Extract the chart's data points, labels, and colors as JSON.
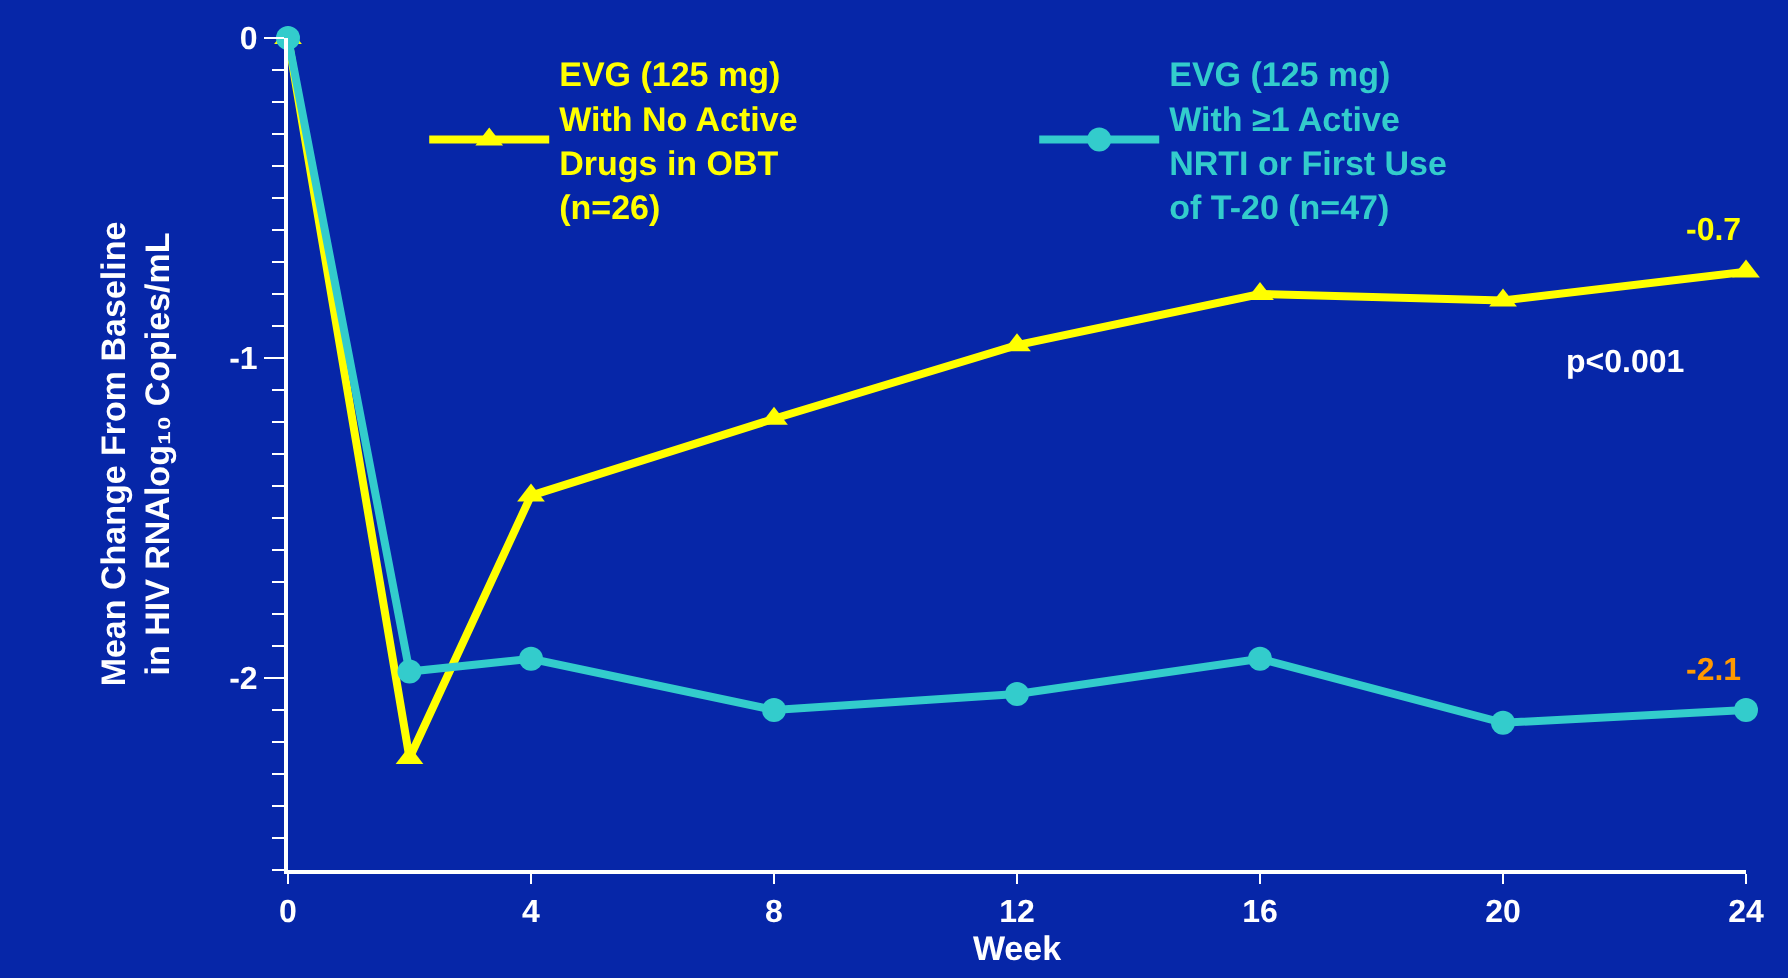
{
  "chart_data": {
    "type": "line",
    "xlabel": "Week",
    "ylabel": "Mean Change From Baseline\nin HIV RNAlog₁₀ Copies/mL",
    "x": [
      0,
      2,
      4,
      8,
      12,
      16,
      20,
      24
    ],
    "series": [
      {
        "name": "EVG (125 mg)\nWith No Active\nDrugs in OBT\n(n=26)",
        "color": "#ffff00",
        "marker": "triangle",
        "values": [
          0,
          -2.25,
          -1.43,
          -1.19,
          -0.96,
          -0.8,
          -0.82,
          -0.73
        ]
      },
      {
        "name": "EVG (125 mg)\nWith ≥1 Active\nNRTI or First Use\nof T-20 (n=47)",
        "color": "#33cccc",
        "marker": "circle",
        "values": [
          0,
          -1.98,
          -1.94,
          -2.1,
          -2.05,
          -1.94,
          -2.14,
          -2.1
        ]
      }
    ],
    "annotations": [
      {
        "text": "-0.7",
        "x": 24,
        "y": -0.73
      },
      {
        "text": "-2.1",
        "x": 24,
        "y": -2.1
      },
      "p<0.001"
    ],
    "xlim": [
      0,
      24
    ],
    "xticks": [
      0,
      4,
      8,
      12,
      16,
      20,
      24
    ],
    "ylim": [
      -2.6,
      0
    ],
    "yticks": [
      0,
      -1,
      -2
    ],
    "grid": false,
    "legend": "top",
    "line_style": "solid"
  }
}
